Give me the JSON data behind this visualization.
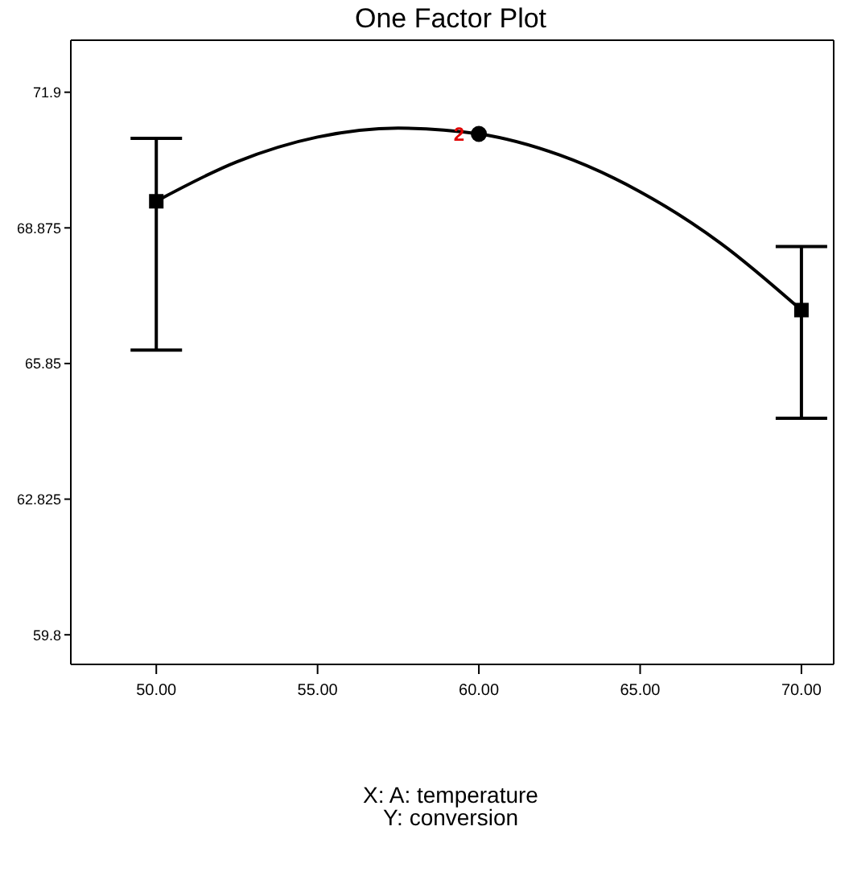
{
  "chart_data": {
    "type": "scatter",
    "title": "One Factor Plot",
    "xlabel": "X: A: temperature",
    "annotations": [
      "Y: conversion",
      {
        "text": "2",
        "x": 60,
        "y": 70.97
      }
    ],
    "xlim": [
      47.35,
      71
    ],
    "ylim": [
      59.14,
      73.06
    ],
    "xticks": [
      {
        "value": 50,
        "label": "50.00"
      },
      {
        "value": 55,
        "label": "55.00"
      },
      {
        "value": 60,
        "label": "60.00"
      },
      {
        "value": 65,
        "label": "65.00"
      },
      {
        "value": 70,
        "label": "70.00"
      }
    ],
    "yticks": [
      59.8,
      62.825,
      65.85,
      68.875,
      71.9
    ],
    "series": [
      {
        "type": "line",
        "color": "#000000",
        "x": [
          50,
          52.5,
          55,
          57.5,
          60,
          62.5,
          65,
          67.5,
          70
        ],
        "values": [
          69.47,
          70.35,
          70.9,
          71.1,
          70.97,
          70.5,
          69.68,
          68.53,
          67.04
        ]
      },
      {
        "color": "#000000",
        "marker": "square",
        "x": [
          50,
          70
        ],
        "values": [
          69.47,
          67.04
        ],
        "errors": [
          [
            66.15,
            70.87
          ],
          [
            64.63,
            68.46
          ]
        ]
      },
      {
        "color": "#000000",
        "marker": "circle",
        "x": [
          60
        ],
        "values": [
          70.97
        ]
      }
    ]
  }
}
